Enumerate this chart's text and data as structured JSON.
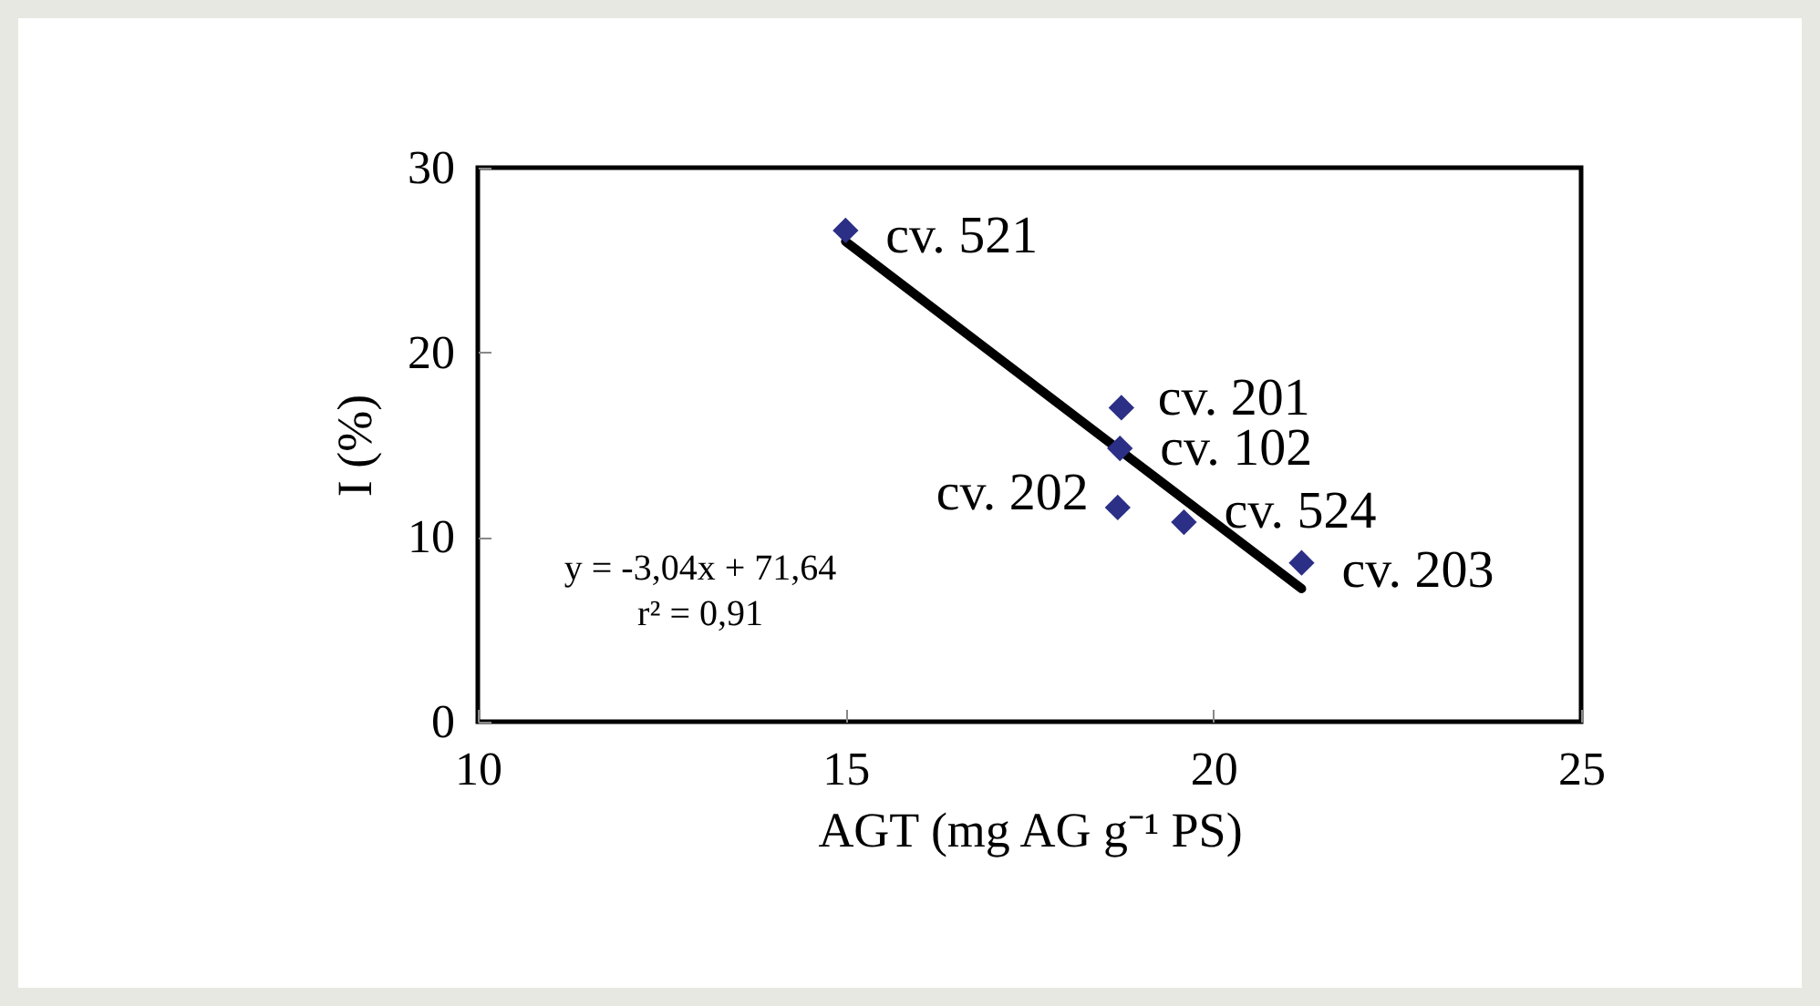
{
  "chart_data": {
    "type": "scatter",
    "xlabel": "AGT (mg AG g⁻¹ PS)",
    "ylabel": "I (%)",
    "x": [
      15.0,
      18.75,
      18.73,
      18.7,
      19.6,
      21.2
    ],
    "series": [
      {
        "color": "#2b2f86",
        "values": [
          26.6,
          17.0,
          14.8,
          11.6,
          10.8,
          8.6
        ]
      },
      {
        "type": "line",
        "marker": "none",
        "color": "#000000",
        "x": [
          15.0,
          21.2
        ],
        "values": [
          26.0,
          7.2
        ]
      }
    ],
    "marker": "diamond",
    "xlim": [
      10,
      25
    ],
    "xticks": [
      10,
      15,
      20,
      25
    ],
    "ylim": [
      0,
      30
    ],
    "yticks": [
      0,
      10,
      20,
      30
    ],
    "grid": false,
    "annotations": [
      {
        "text": "cv. 521",
        "x": 15.0,
        "y": 26.6
      },
      {
        "text": "cv. 201",
        "x": 18.75,
        "y": 17.0
      },
      {
        "text": "cv. 102",
        "x": 18.73,
        "y": 14.8
      },
      {
        "text": "cv. 202",
        "x": 18.7,
        "y": 11.6
      },
      {
        "text": "cv. 524",
        "x": 19.6,
        "y": 10.8
      },
      {
        "text": "cv. 203",
        "x": 21.2,
        "y": 8.6
      },
      "y = -3,04x + 71,64",
      "r² = 0,91"
    ]
  }
}
